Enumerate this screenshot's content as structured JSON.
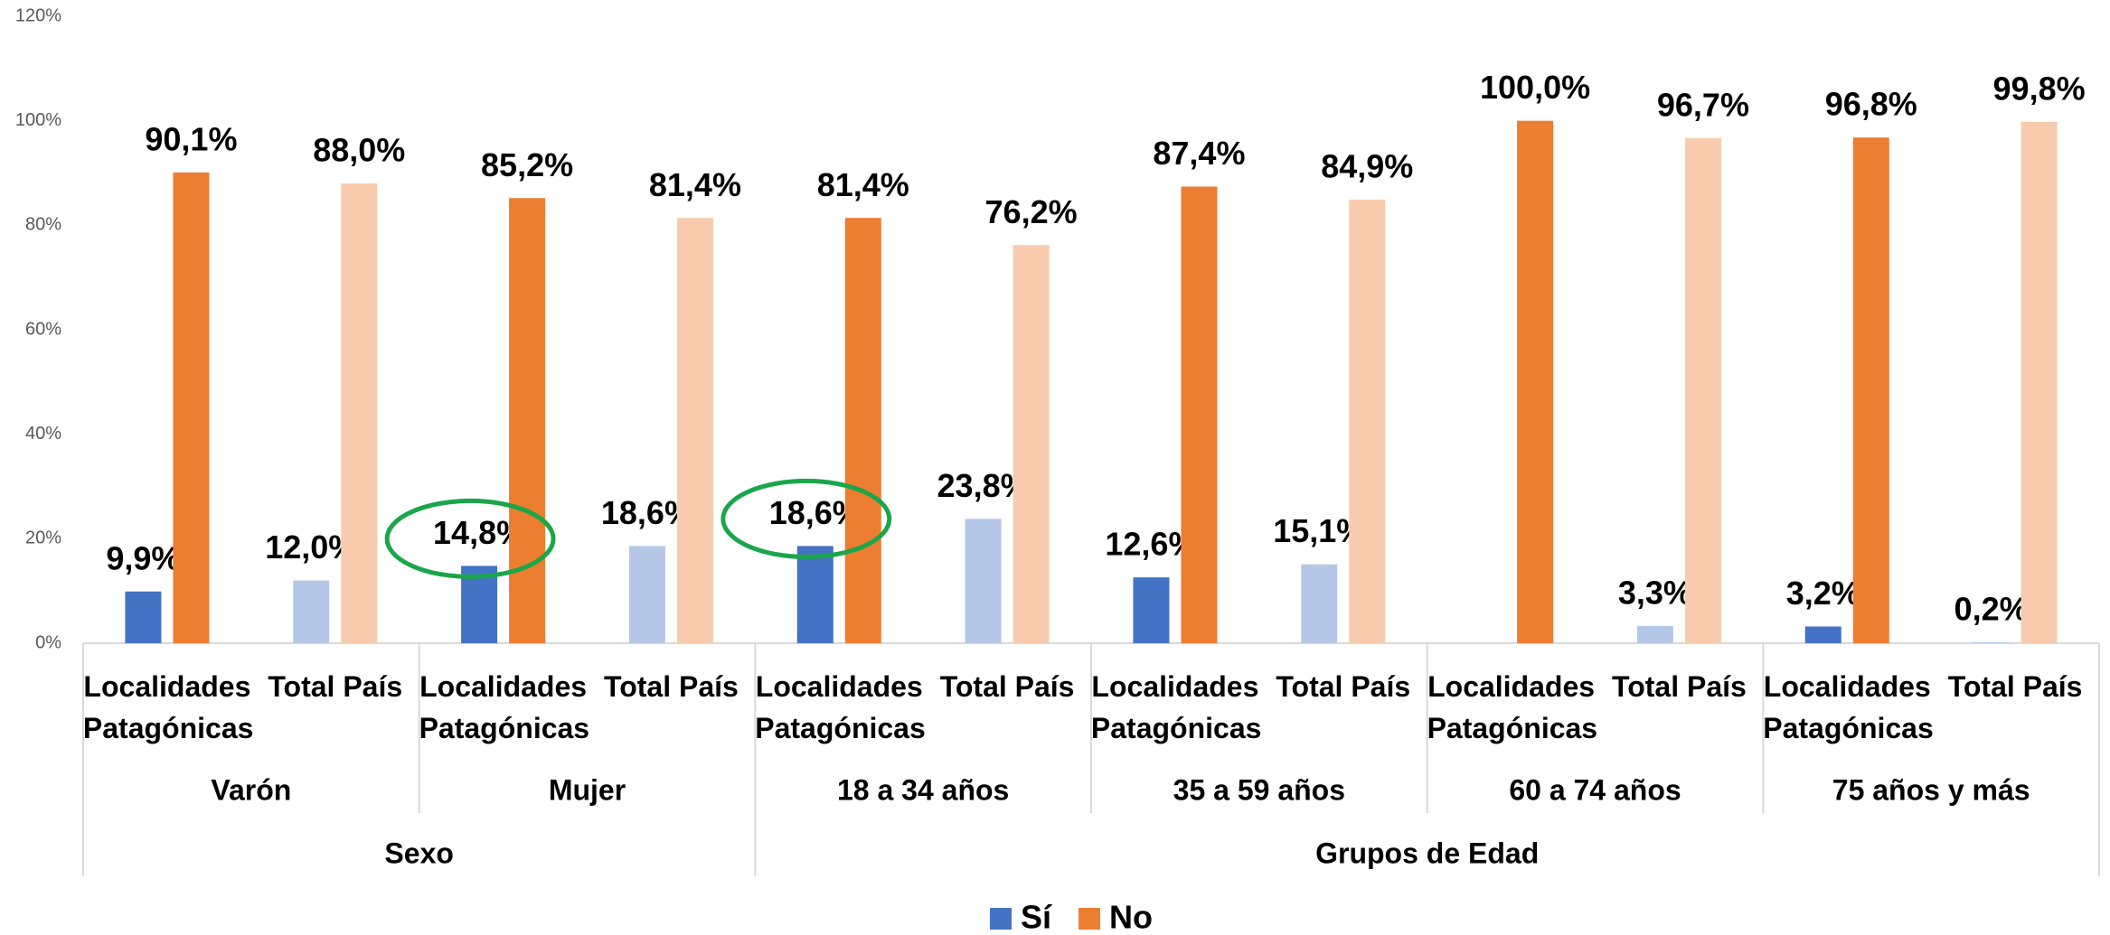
{
  "chart_data": {
    "type": "bar",
    "groups": [
      {
        "name": "Sexo",
        "groups": [
          {
            "name": "Varón",
            "categories": [
              "Localidades Patagónicas",
              "Total País"
            ]
          },
          {
            "name": "Mujer",
            "categories": [
              "Localidades Patagónicas",
              "Total País"
            ]
          }
        ]
      },
      {
        "name": "Grupos de Edad",
        "groups": [
          {
            "name": "18 a 34 años",
            "categories": [
              "Localidades Patagónicas",
              "Total País"
            ]
          },
          {
            "name": "35 a 59 años",
            "categories": [
              "Localidades Patagónicas",
              "Total País"
            ]
          },
          {
            "name": "60 a 74 años",
            "categories": [
              "Localidades Patagónicas",
              "Total País"
            ]
          },
          {
            "name": "75 años y más",
            "categories": [
              "Localidades Patagónicas",
              "Total País"
            ]
          }
        ]
      }
    ],
    "series": [
      {
        "name": "Sí",
        "color": "#4472c4",
        "colors": [
          "#4472c4",
          "#b4c7e7",
          "#4472c4",
          "#b4c7e7",
          "#4472c4",
          "#b4c7e7",
          "#4472c4",
          "#b4c7e7",
          "#4472c4",
          "#b4c7e7",
          "#4472c4",
          "#b4c7e7"
        ],
        "values": [
          9.9,
          12.0,
          14.8,
          18.6,
          18.6,
          23.8,
          12.6,
          15.1,
          null,
          3.3,
          3.2,
          0.2
        ],
        "value_labels": [
          "9,9%",
          "12,0%",
          "14,8%",
          "18,6%",
          "18,6%",
          "23,8%",
          "12,6%",
          "15,1%",
          null,
          "3,3%",
          "3,2%",
          "0,2%"
        ]
      },
      {
        "name": "No",
        "color": "#ed7d31",
        "colors": [
          "#ed7d31",
          "#f8cbad",
          "#ed7d31",
          "#f8cbad",
          "#ed7d31",
          "#f8cbad",
          "#ed7d31",
          "#f8cbad",
          "#ed7d31",
          "#f8cbad",
          "#ed7d31",
          "#f8cbad"
        ],
        "values": [
          90.1,
          88.0,
          85.2,
          81.4,
          81.4,
          76.2,
          87.4,
          84.9,
          100.0,
          96.7,
          96.8,
          99.8
        ],
        "value_labels": [
          "90,1%",
          "88,0%",
          "85,2%",
          "81,4%",
          "81,4%",
          "76,2%",
          "87,4%",
          "84,9%",
          "100,0%",
          "96,7%",
          "96,8%",
          "99,8%"
        ]
      }
    ],
    "ylim": [
      0,
      120
    ],
    "yticks": [
      {
        "value": 0,
        "label": "0%"
      },
      {
        "value": 20,
        "label": "20%"
      },
      {
        "value": 40,
        "label": "40%"
      },
      {
        "value": 60,
        "label": "60%"
      },
      {
        "value": 80,
        "label": "80%"
      },
      {
        "value": 100,
        "label": "100%"
      },
      {
        "value": 120,
        "label": "120%"
      }
    ],
    "grid": false,
    "legend": "bottom"
  }
}
